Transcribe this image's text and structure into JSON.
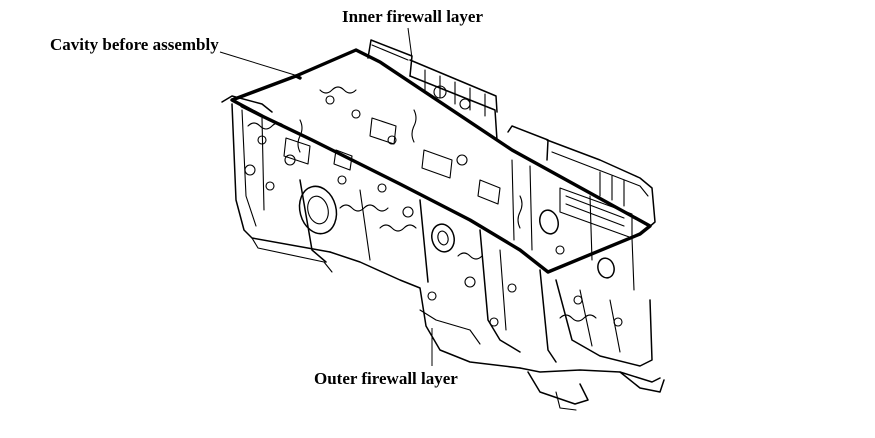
{
  "diagram": {
    "labels": {
      "inner": "Inner firewall layer",
      "cavity": "Cavity before assembly",
      "outer": "Outer firewall layer"
    },
    "colors": {
      "ink": "#000000",
      "background": "#ffffff"
    }
  }
}
